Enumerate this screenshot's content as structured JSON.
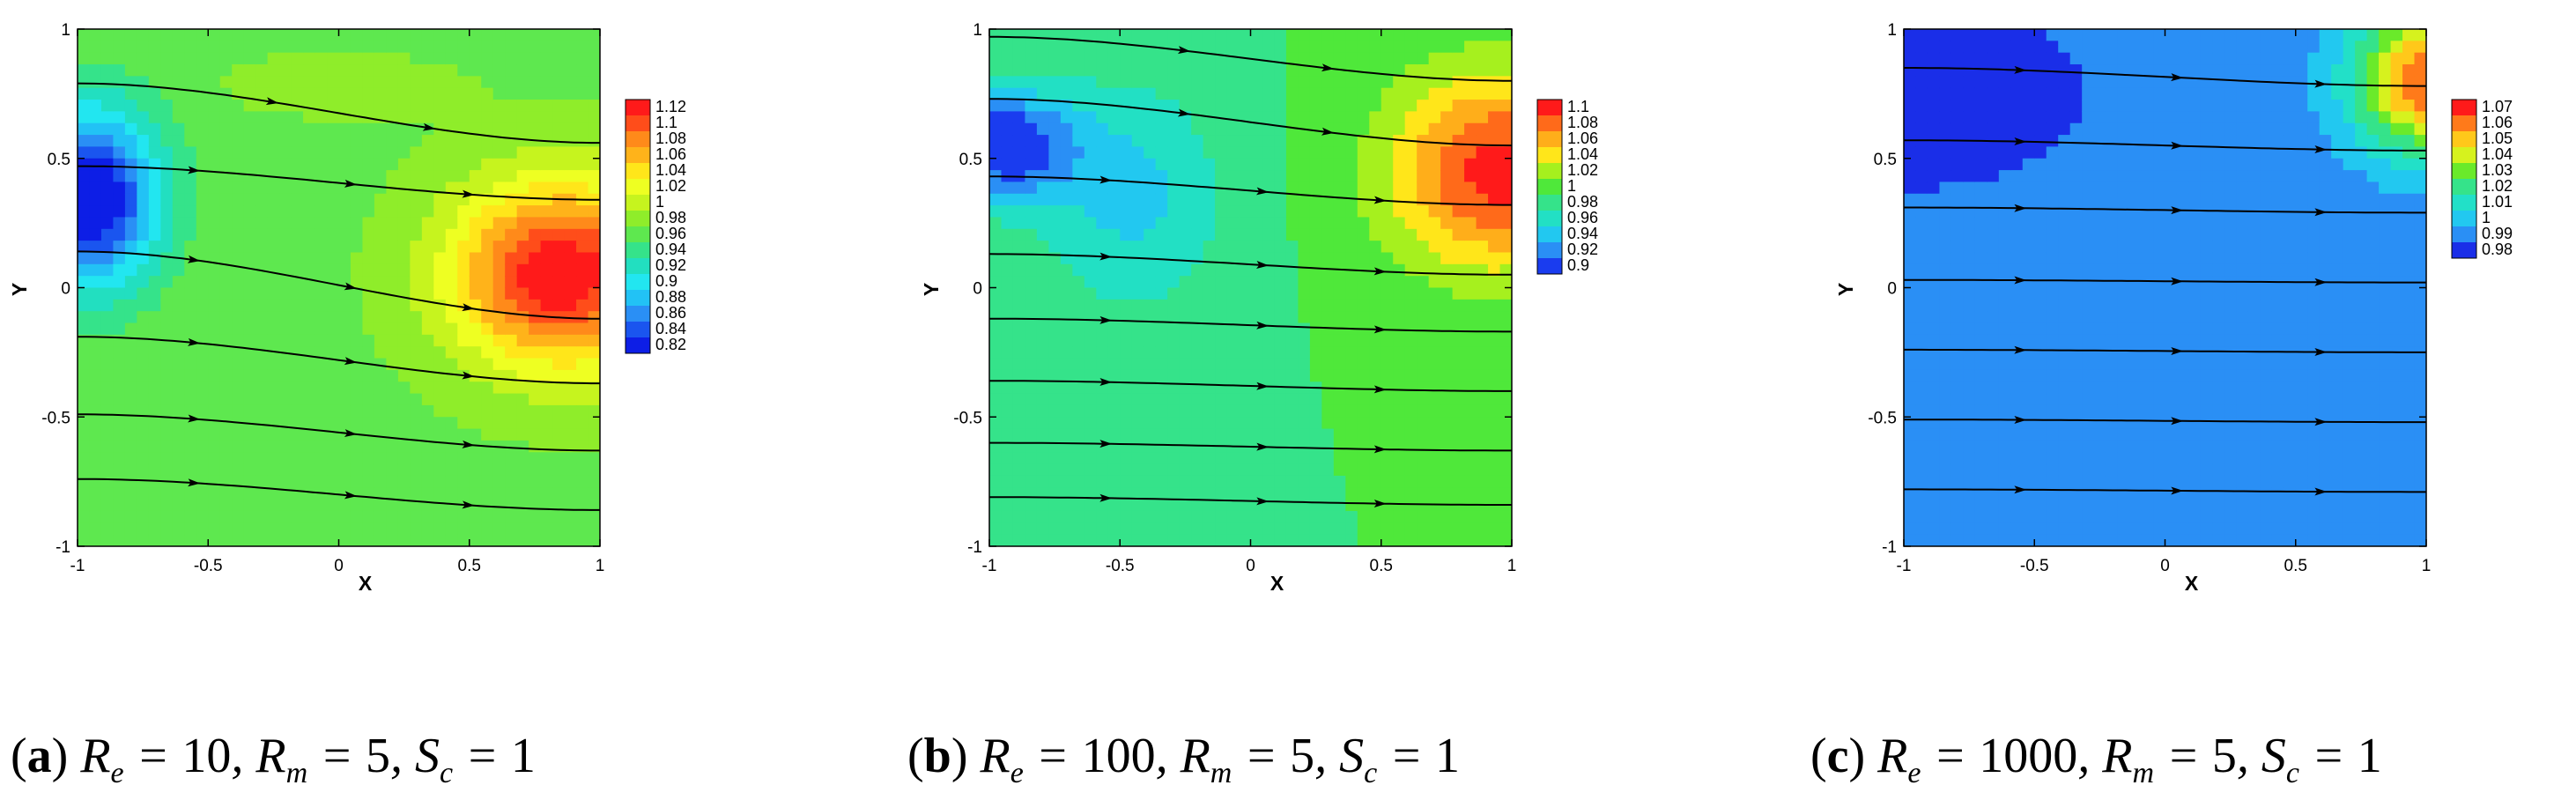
{
  "chart_data": [
    {
      "type": "heatmap",
      "caption": {
        "tag": "a",
        "text": "R_e = 10, R_m = 5, S_c = 1"
      },
      "params": {
        "Re": 10,
        "Rm": 5,
        "Sc": 1
      },
      "xlabel": "X",
      "ylabel": "Y",
      "xlim": [
        -1,
        1
      ],
      "ylim": [
        -1,
        1
      ],
      "xticks": [
        "-1",
        "-0.5",
        "0",
        "0.5",
        "1"
      ],
      "yticks": [
        "-1",
        "-0.5",
        "0",
        "0.5",
        "1"
      ],
      "legend": {
        "position": "right",
        "levels": [
          "1.12",
          "1.1",
          "1.08",
          "1.06",
          "1.04",
          "1.02",
          "1",
          "0.98",
          "0.96",
          "0.94",
          "0.92",
          "0.9",
          "0.88",
          "0.86",
          "0.84",
          "0.82"
        ],
        "colors": [
          "#ff1a1a",
          "#ff4d1a",
          "#ff8a1a",
          "#ffb31a",
          "#ffe61a",
          "#eeff22",
          "#c6f41e",
          "#8fed2a",
          "#5ee84f",
          "#35e38a",
          "#22dfc0",
          "#22e6f0",
          "#22c2f5",
          "#2a8ff5",
          "#1a55ef",
          "#0d1ee6"
        ]
      },
      "field": {
        "base": 0.975,
        "blobs": [
          {
            "x": -0.95,
            "y": 0.35,
            "sx": 0.26,
            "sy": 0.34,
            "a": -0.17
          },
          {
            "x": 0.85,
            "y": 0.05,
            "sx": 0.42,
            "sy": 0.36,
            "a": 0.165
          },
          {
            "x": 0.0,
            "y": 0.78,
            "sx": 0.45,
            "sy": 0.12,
            "a": 0.015
          }
        ]
      },
      "streamlines": [
        {
          "y0": 0.79,
          "y1": 0.56,
          "arrows": [
            -0.25,
            0.35
          ]
        },
        {
          "y0": 0.47,
          "y1": 0.34,
          "arrows": [
            -0.55,
            0.05,
            0.5
          ]
        },
        {
          "y0": 0.14,
          "y1": -0.12,
          "arrows": [
            -0.55,
            0.05,
            0.5
          ]
        },
        {
          "y0": -0.19,
          "y1": -0.37,
          "arrows": [
            -0.55,
            0.05,
            0.5
          ]
        },
        {
          "y0": -0.49,
          "y1": -0.63,
          "arrows": [
            -0.55,
            0.05,
            0.5
          ]
        },
        {
          "y0": -0.74,
          "y1": -0.86,
          "arrows": [
            -0.55,
            0.05,
            0.5
          ]
        }
      ]
    },
    {
      "type": "heatmap",
      "caption": {
        "tag": "b",
        "text": "R_e = 100, R_m = 5, S_c = 1"
      },
      "params": {
        "Re": 100,
        "Rm": 5,
        "Sc": 1
      },
      "xlabel": "X",
      "ylabel": "Y",
      "xlim": [
        -1,
        1
      ],
      "ylim": [
        -1,
        1
      ],
      "xticks": [
        "-1",
        "-0.5",
        "0",
        "0.5",
        "1"
      ],
      "yticks": [
        "-1",
        "-0.5",
        "0",
        "0.5",
        "1"
      ],
      "legend": {
        "position": "right",
        "levels": [
          "1.1",
          "1.08",
          "1.06",
          "1.04",
          "1.02",
          "1",
          "0.98",
          "0.96",
          "0.94",
          "0.92",
          "0.9"
        ],
        "colors": [
          "#ff1a1a",
          "#ff6a1a",
          "#ffae1a",
          "#ffe61a",
          "#a6f01e",
          "#4fe83a",
          "#35e38a",
          "#22e0c4",
          "#22c8f0",
          "#2a8ff5",
          "#1a3cef"
        ]
      },
      "field": {
        "base": 1.0,
        "blobs": [
          {
            "x": -0.95,
            "y": 0.55,
            "sx": 0.28,
            "sy": 0.22,
            "a": -0.1
          },
          {
            "x": 0.95,
            "y": 0.45,
            "sx": 0.42,
            "sy": 0.38,
            "a": 0.11
          },
          {
            "x": -0.45,
            "y": 0.35,
            "sx": 0.35,
            "sy": 0.45,
            "a": -0.045
          }
        ]
      },
      "streamlines": [
        {
          "y0": 0.97,
          "y1": 0.8,
          "arrows": [
            -0.25,
            0.3
          ]
        },
        {
          "y0": 0.73,
          "y1": 0.55,
          "arrows": [
            -0.25,
            0.3
          ]
        },
        {
          "y0": 0.43,
          "y1": 0.32,
          "arrows": [
            -0.55,
            0.05,
            0.5
          ]
        },
        {
          "y0": 0.13,
          "y1": 0.05,
          "arrows": [
            -0.55,
            0.05,
            0.5
          ]
        },
        {
          "y0": -0.12,
          "y1": -0.17,
          "arrows": [
            -0.55,
            0.05,
            0.5
          ]
        },
        {
          "y0": -0.36,
          "y1": -0.4,
          "arrows": [
            -0.55,
            0.05,
            0.5
          ]
        },
        {
          "y0": -0.6,
          "y1": -0.63,
          "arrows": [
            -0.55,
            0.05,
            0.5
          ]
        },
        {
          "y0": -0.81,
          "y1": -0.84,
          "arrows": [
            -0.55,
            0.05,
            0.5
          ]
        }
      ]
    },
    {
      "type": "heatmap",
      "caption": {
        "tag": "c",
        "text": "R_e = 1000, R_m = 5, S_c = 1"
      },
      "params": {
        "Re": 1000,
        "Rm": 5,
        "Sc": 1
      },
      "xlabel": "X",
      "ylabel": "Y",
      "xlim": [
        -1,
        1
      ],
      "ylim": [
        -1,
        1
      ],
      "xticks": [
        "-1",
        "-0.5",
        "0",
        "0.5",
        "1"
      ],
      "yticks": [
        "-1",
        "-0.5",
        "0",
        "0.5",
        "1"
      ],
      "legend": {
        "position": "right",
        "levels": [
          "1.07",
          "1.06",
          "1.05",
          "1.04",
          "1.03",
          "1.02",
          "1.01",
          "1",
          "0.99",
          "0.98"
        ],
        "colors": [
          "#ff1a1a",
          "#ff7a1a",
          "#ffc81a",
          "#d6f21e",
          "#6aea2a",
          "#35e38a",
          "#22e0c8",
          "#22c8f0",
          "#2a8ff5",
          "#1a2ee8"
        ]
      },
      "field": {
        "base": 0.994,
        "blobs": [
          {
            "x": -0.95,
            "y": 0.75,
            "sx": 0.55,
            "sy": 0.32,
            "a": -0.015
          },
          {
            "x": 1.0,
            "y": 0.8,
            "sx": 0.28,
            "sy": 0.28,
            "a": 0.075
          },
          {
            "x": 0.25,
            "y": -0.1,
            "sx": 0.18,
            "sy": 1.2,
            "a": 0.004
          }
        ]
      },
      "streamlines": [
        {
          "y0": 0.85,
          "y1": 0.78,
          "arrows": [
            -0.55,
            0.05,
            0.6
          ]
        },
        {
          "y0": 0.57,
          "y1": 0.53,
          "arrows": [
            -0.55,
            0.05,
            0.6
          ]
        },
        {
          "y0": 0.31,
          "y1": 0.29,
          "arrows": [
            -0.55,
            0.05,
            0.6
          ]
        },
        {
          "y0": 0.03,
          "y1": 0.02,
          "arrows": [
            -0.55,
            0.05,
            0.6
          ]
        },
        {
          "y0": -0.24,
          "y1": -0.25,
          "arrows": [
            -0.55,
            0.05,
            0.6
          ]
        },
        {
          "y0": -0.51,
          "y1": -0.52,
          "arrows": [
            -0.55,
            0.05,
            0.6
          ]
        },
        {
          "y0": -0.78,
          "y1": -0.79,
          "arrows": [
            -0.55,
            0.05,
            0.6
          ]
        }
      ]
    }
  ]
}
